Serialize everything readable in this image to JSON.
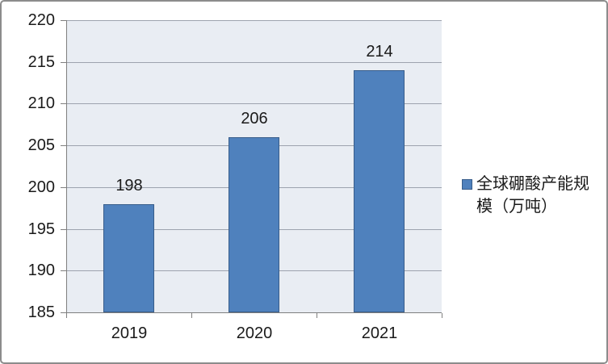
{
  "chart_data": {
    "type": "bar",
    "title": "",
    "categories": [
      "2019",
      "2020",
      "2021"
    ],
    "series": [
      {
        "name": "全球硼酸产能规模（万吨）",
        "values": [
          198,
          206,
          214
        ]
      }
    ],
    "data_labels": [
      "198",
      "206",
      "214"
    ],
    "xlabel": "",
    "ylabel": "",
    "ylim": [
      185,
      220
    ],
    "yticks": [
      185,
      190,
      195,
      200,
      205,
      210,
      215,
      220
    ],
    "grid": true,
    "legend_position": "right"
  },
  "legend": {
    "label": "全球硼酸产能规模（万吨）",
    "lines": [
      "全球硼酸产能规",
      "模（万吨）"
    ]
  },
  "colors": {
    "bar_fill": "#4f81bd",
    "bar_border": "#385d8a",
    "plot_background": "#e9edf3",
    "gridline": "#9da3ae",
    "axis_line": "#7f7f7f",
    "frame_border": "#8c8c8c",
    "text": "#1a1a1a"
  }
}
